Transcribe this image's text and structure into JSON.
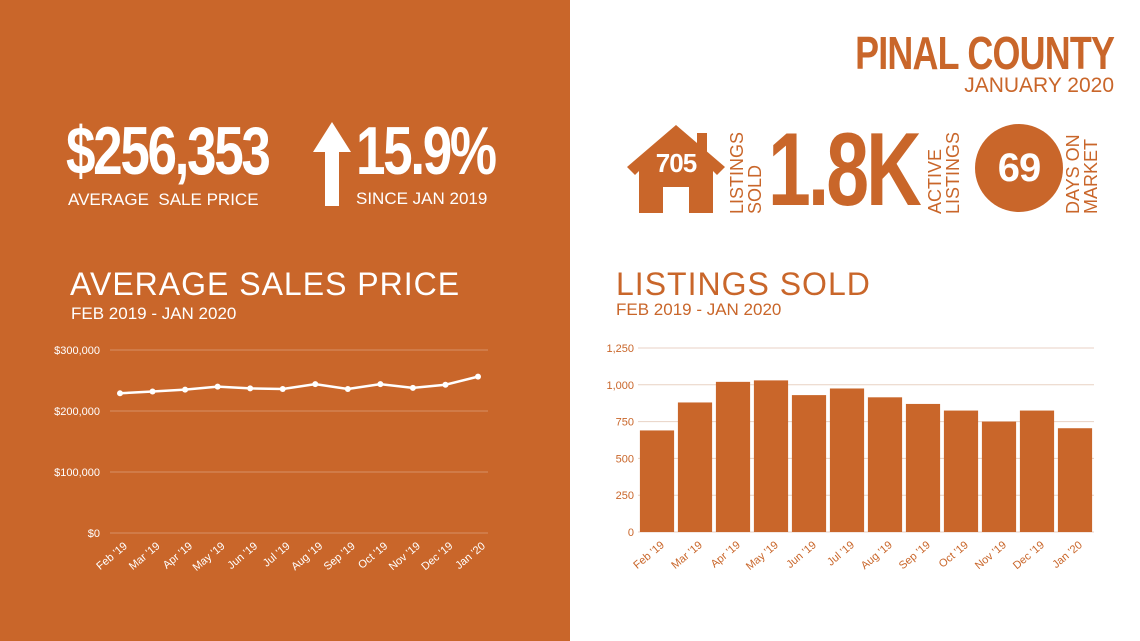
{
  "colors": {
    "accent": "#c9662a",
    "white": "#ffffff"
  },
  "hero": {
    "avg_price": "$256,353",
    "avg_price_label": "AVERAGE  SALE PRICE",
    "change": "15.9%",
    "change_label": "SINCE JAN 2019",
    "change_icon": "arrow-up-icon"
  },
  "header": {
    "county": "PINAL COUNTY",
    "period": "JANUARY 2020"
  },
  "stats": {
    "listings_sold_value": "705",
    "listings_sold_icon": "house-icon",
    "listings_sold_label_1": "LISTINGS",
    "listings_sold_label_2": "SOLD",
    "active_value": "1.8K",
    "active_label_1": "ACTIVE",
    "active_label_2": "LISTINGS",
    "dom_value": "69",
    "dom_label_1": "DAYS ON",
    "dom_label_2": "MARKET"
  },
  "left_chart": {
    "title": "AVERAGE SALES PRICE",
    "subtitle": "FEB 2019 - JAN 2020"
  },
  "right_chart": {
    "title": "LISTINGS SOLD",
    "subtitle": "FEB 2019 - JAN 2020"
  },
  "chart_data": [
    {
      "type": "line",
      "categories": [
        "Feb '19",
        "Mar '19",
        "Apr '19",
        "May '19",
        "Jun '19",
        "Jul '19",
        "Aug '19",
        "Sep '19",
        "Oct '19",
        "Nov '19",
        "Dec '19",
        "Jan '20"
      ],
      "values": [
        229000,
        232000,
        235000,
        240000,
        237000,
        236000,
        244000,
        236000,
        244000,
        238000,
        243000,
        256353
      ],
      "ylim": [
        0,
        300000
      ],
      "yticks": [
        "$0",
        "$100,000",
        "$200,000",
        "$300,000"
      ],
      "ytick_values": [
        0,
        100000,
        200000,
        300000
      ],
      "grid": true
    },
    {
      "type": "bar",
      "categories": [
        "Feb '19",
        "Mar '19",
        "Apr '19",
        "May '19",
        "Jun '19",
        "Jul '19",
        "Aug '19",
        "Sep '19",
        "Oct '19",
        "Nov '19",
        "Dec '19",
        "Jan '20"
      ],
      "values": [
        690,
        880,
        1020,
        1030,
        930,
        975,
        915,
        870,
        825,
        750,
        825,
        705
      ],
      "ylim": [
        0,
        1250
      ],
      "yticks": [
        "0",
        "250",
        "500",
        "750",
        "1,000",
        "1,250"
      ],
      "ytick_values": [
        0,
        250,
        500,
        750,
        1000,
        1250
      ],
      "grid": true
    }
  ]
}
